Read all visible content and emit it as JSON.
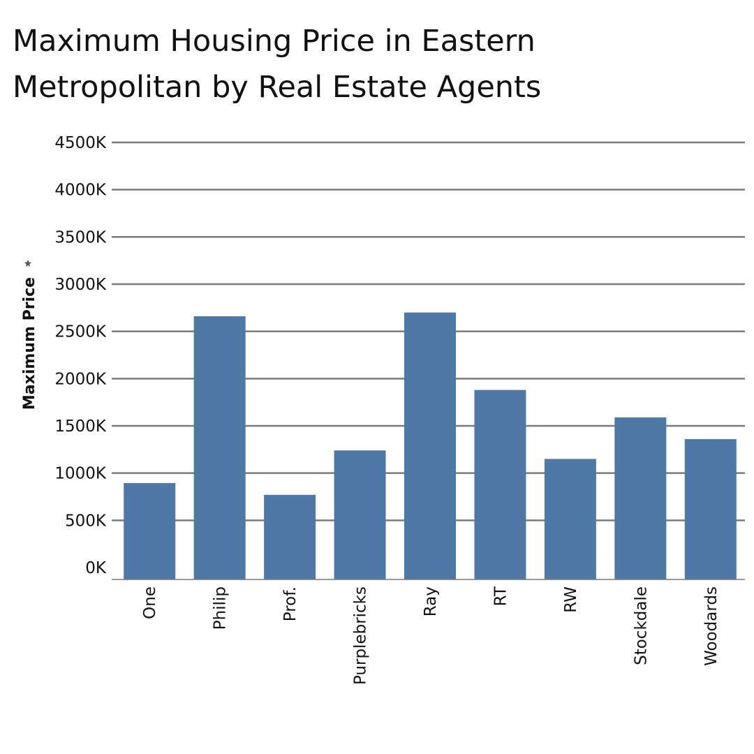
{
  "chart_data": {
    "type": "bar",
    "title": "Maximum Housing Price in Eastern Metropolitan by Real Estate Agents",
    "xlabel": "",
    "ylabel": "Maximum Price",
    "ylim": [
      0,
      4500000
    ],
    "ytick_values": [
      0,
      500000,
      1000000,
      1500000,
      2000000,
      2500000,
      3000000,
      3500000,
      4000000,
      4500000
    ],
    "ytick_labels": [
      "0K",
      "500K",
      "1000K",
      "1500K",
      "2000K",
      "2500K",
      "3000K",
      "3500K",
      "4000K",
      "4500K"
    ],
    "categories": [
      "One",
      "Philip",
      "Prof.",
      "Purplebricks",
      "Ray",
      "RT",
      "RW",
      "Stockdale",
      "Woodards"
    ],
    "values": [
      895000,
      2660000,
      770000,
      1240000,
      2700000,
      1880000,
      1150000,
      1590000,
      1360000
    ],
    "bar_color": "#4e79a7",
    "grid": true,
    "legend": "none"
  }
}
